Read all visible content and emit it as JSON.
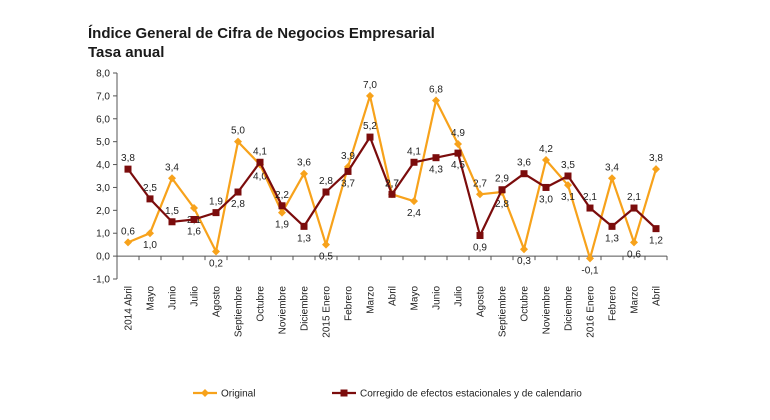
{
  "chart_data": {
    "type": "line",
    "title": "Índice General de Cifra de Negocios Empresarial",
    "subtitle": "Tasa anual",
    "xlabel": "",
    "ylabel": "",
    "ylim": [
      -1.0,
      8.0
    ],
    "ytick_step": 1.0,
    "yticks": [
      "-1,0",
      "0,0",
      "1,0",
      "2,0",
      "3,0",
      "4,0",
      "5,0",
      "6,0",
      "7,0",
      "8,0"
    ],
    "grid": false,
    "legend_position": "bottom",
    "categories": [
      "2014 Abril",
      "Mayo",
      "Junio",
      "Julio",
      "Agosto",
      "Septiembre",
      "Octubre",
      "Noviembre",
      "Diciembre",
      "2015 Enero",
      "Febrero",
      "Marzo",
      "Abril",
      "Mayo",
      "Junio",
      "Julio",
      "Agosto",
      "Septiembre",
      "Octubre",
      "Noviembre",
      "Diciembre",
      "2016 Enero",
      "Febrero",
      "Marzo",
      "Abril"
    ],
    "series": [
      {
        "name": "Original",
        "color": "#F7A21B",
        "marker": "diamond",
        "values": [
          0.6,
          1.0,
          3.4,
          2.1,
          0.2,
          5.0,
          4.0,
          1.9,
          3.6,
          0.5,
          3.9,
          7.0,
          2.7,
          2.4,
          6.8,
          4.9,
          2.7,
          2.8,
          0.3,
          4.2,
          3.1,
          -0.1,
          3.4,
          0.6,
          3.8
        ],
        "labels": [
          "0,6",
          "1,0",
          "3,4",
          "2,1",
          "0,2",
          "5,0",
          "4,0",
          "1,9",
          "3,6",
          "0,5",
          "3,9",
          "7,0",
          "2,7",
          "2,4",
          "6,8",
          "4,9",
          "2,7",
          "2,8",
          "0,3",
          "4,2",
          "3,1",
          "-0,1",
          "3,4",
          "0,6",
          "3,8"
        ]
      },
      {
        "name": "Corregido de efectos estacionales y de calendario",
        "color": "#7B0C0C",
        "marker": "square",
        "values": [
          3.8,
          2.5,
          1.5,
          1.6,
          1.9,
          2.8,
          4.1,
          2.2,
          1.3,
          2.8,
          3.7,
          5.2,
          2.7,
          4.1,
          4.3,
          4.5,
          0.9,
          2.9,
          3.6,
          3.0,
          3.5,
          2.1,
          1.3,
          2.1,
          1.2
        ],
        "labels": [
          "3,8",
          "2,5",
          "1,5",
          "1,6",
          "1,9",
          "2,8",
          "4,1",
          "2,2",
          "1,3",
          "2,8",
          "3,7",
          "5,2",
          "2,7",
          "4,1",
          "4,3",
          "4,5",
          "0,9",
          "2,9",
          "3,6",
          "3,0",
          "3,5",
          "2,1",
          "1,3",
          "2,1",
          "1,2"
        ]
      }
    ]
  }
}
